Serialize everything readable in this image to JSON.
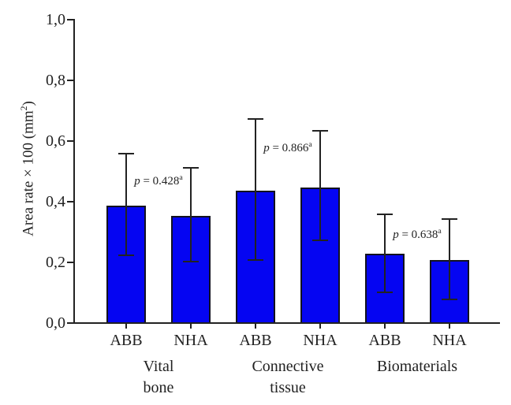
{
  "figure": {
    "background": "#ffffff",
    "bar_fill_color": "#0505f2",
    "bar_border_color": "#12121f",
    "axis_color": "#222222"
  },
  "chart_data": {
    "type": "bar",
    "title": "",
    "xlabel": "",
    "ylabel_parts": {
      "prefix": "Area rate × 100 (mm",
      "sup": "2",
      "suffix": ")"
    },
    "ylim": [
      0.0,
      1.0
    ],
    "ytick_values": [
      0.0,
      0.2,
      0.4,
      0.6,
      0.8,
      1.0
    ],
    "ytick_labels": [
      "0,0",
      "0,2",
      "0,4",
      "0,6",
      "0,8",
      "1,0"
    ],
    "grid": false,
    "legend": "none",
    "groups": [
      {
        "label_lines": [
          "Vital",
          "bone"
        ]
      },
      {
        "label_lines": [
          "Connective",
          "tissue"
        ]
      },
      {
        "label_lines": [
          "Biomaterials"
        ]
      }
    ],
    "bars": [
      {
        "group": "Vital bone",
        "name": "ABB",
        "value": 0.385,
        "err_high": 0.555,
        "err_low": 0.22
      },
      {
        "group": "Vital bone",
        "name": "NHA",
        "value": 0.35,
        "err_high": 0.51,
        "err_low": 0.2
      },
      {
        "group": "Connective tissue",
        "name": "ABB",
        "value": 0.435,
        "err_high": 0.67,
        "err_low": 0.205
      },
      {
        "group": "Connective tissue",
        "name": "NHA",
        "value": 0.445,
        "err_high": 0.63,
        "err_low": 0.27
      },
      {
        "group": "Biomaterials",
        "name": "ABB",
        "value": 0.225,
        "err_high": 0.355,
        "err_low": 0.1
      },
      {
        "group": "Biomaterials",
        "name": "NHA",
        "value": 0.205,
        "err_high": 0.34,
        "err_low": 0.075
      }
    ],
    "annotations": [
      {
        "var": "p",
        "eq": "=",
        "value": "0.428",
        "sup": "a",
        "pair": [
          0,
          1
        ],
        "y": 0.475
      },
      {
        "var": "p",
        "eq": "=",
        "value": "0.866",
        "sup": "a",
        "pair": [
          2,
          3
        ],
        "y": 0.585
      },
      {
        "var": "p",
        "eq": "=",
        "value": "0.638",
        "sup": "a",
        "pair": [
          4,
          5
        ],
        "y": 0.3
      }
    ]
  }
}
